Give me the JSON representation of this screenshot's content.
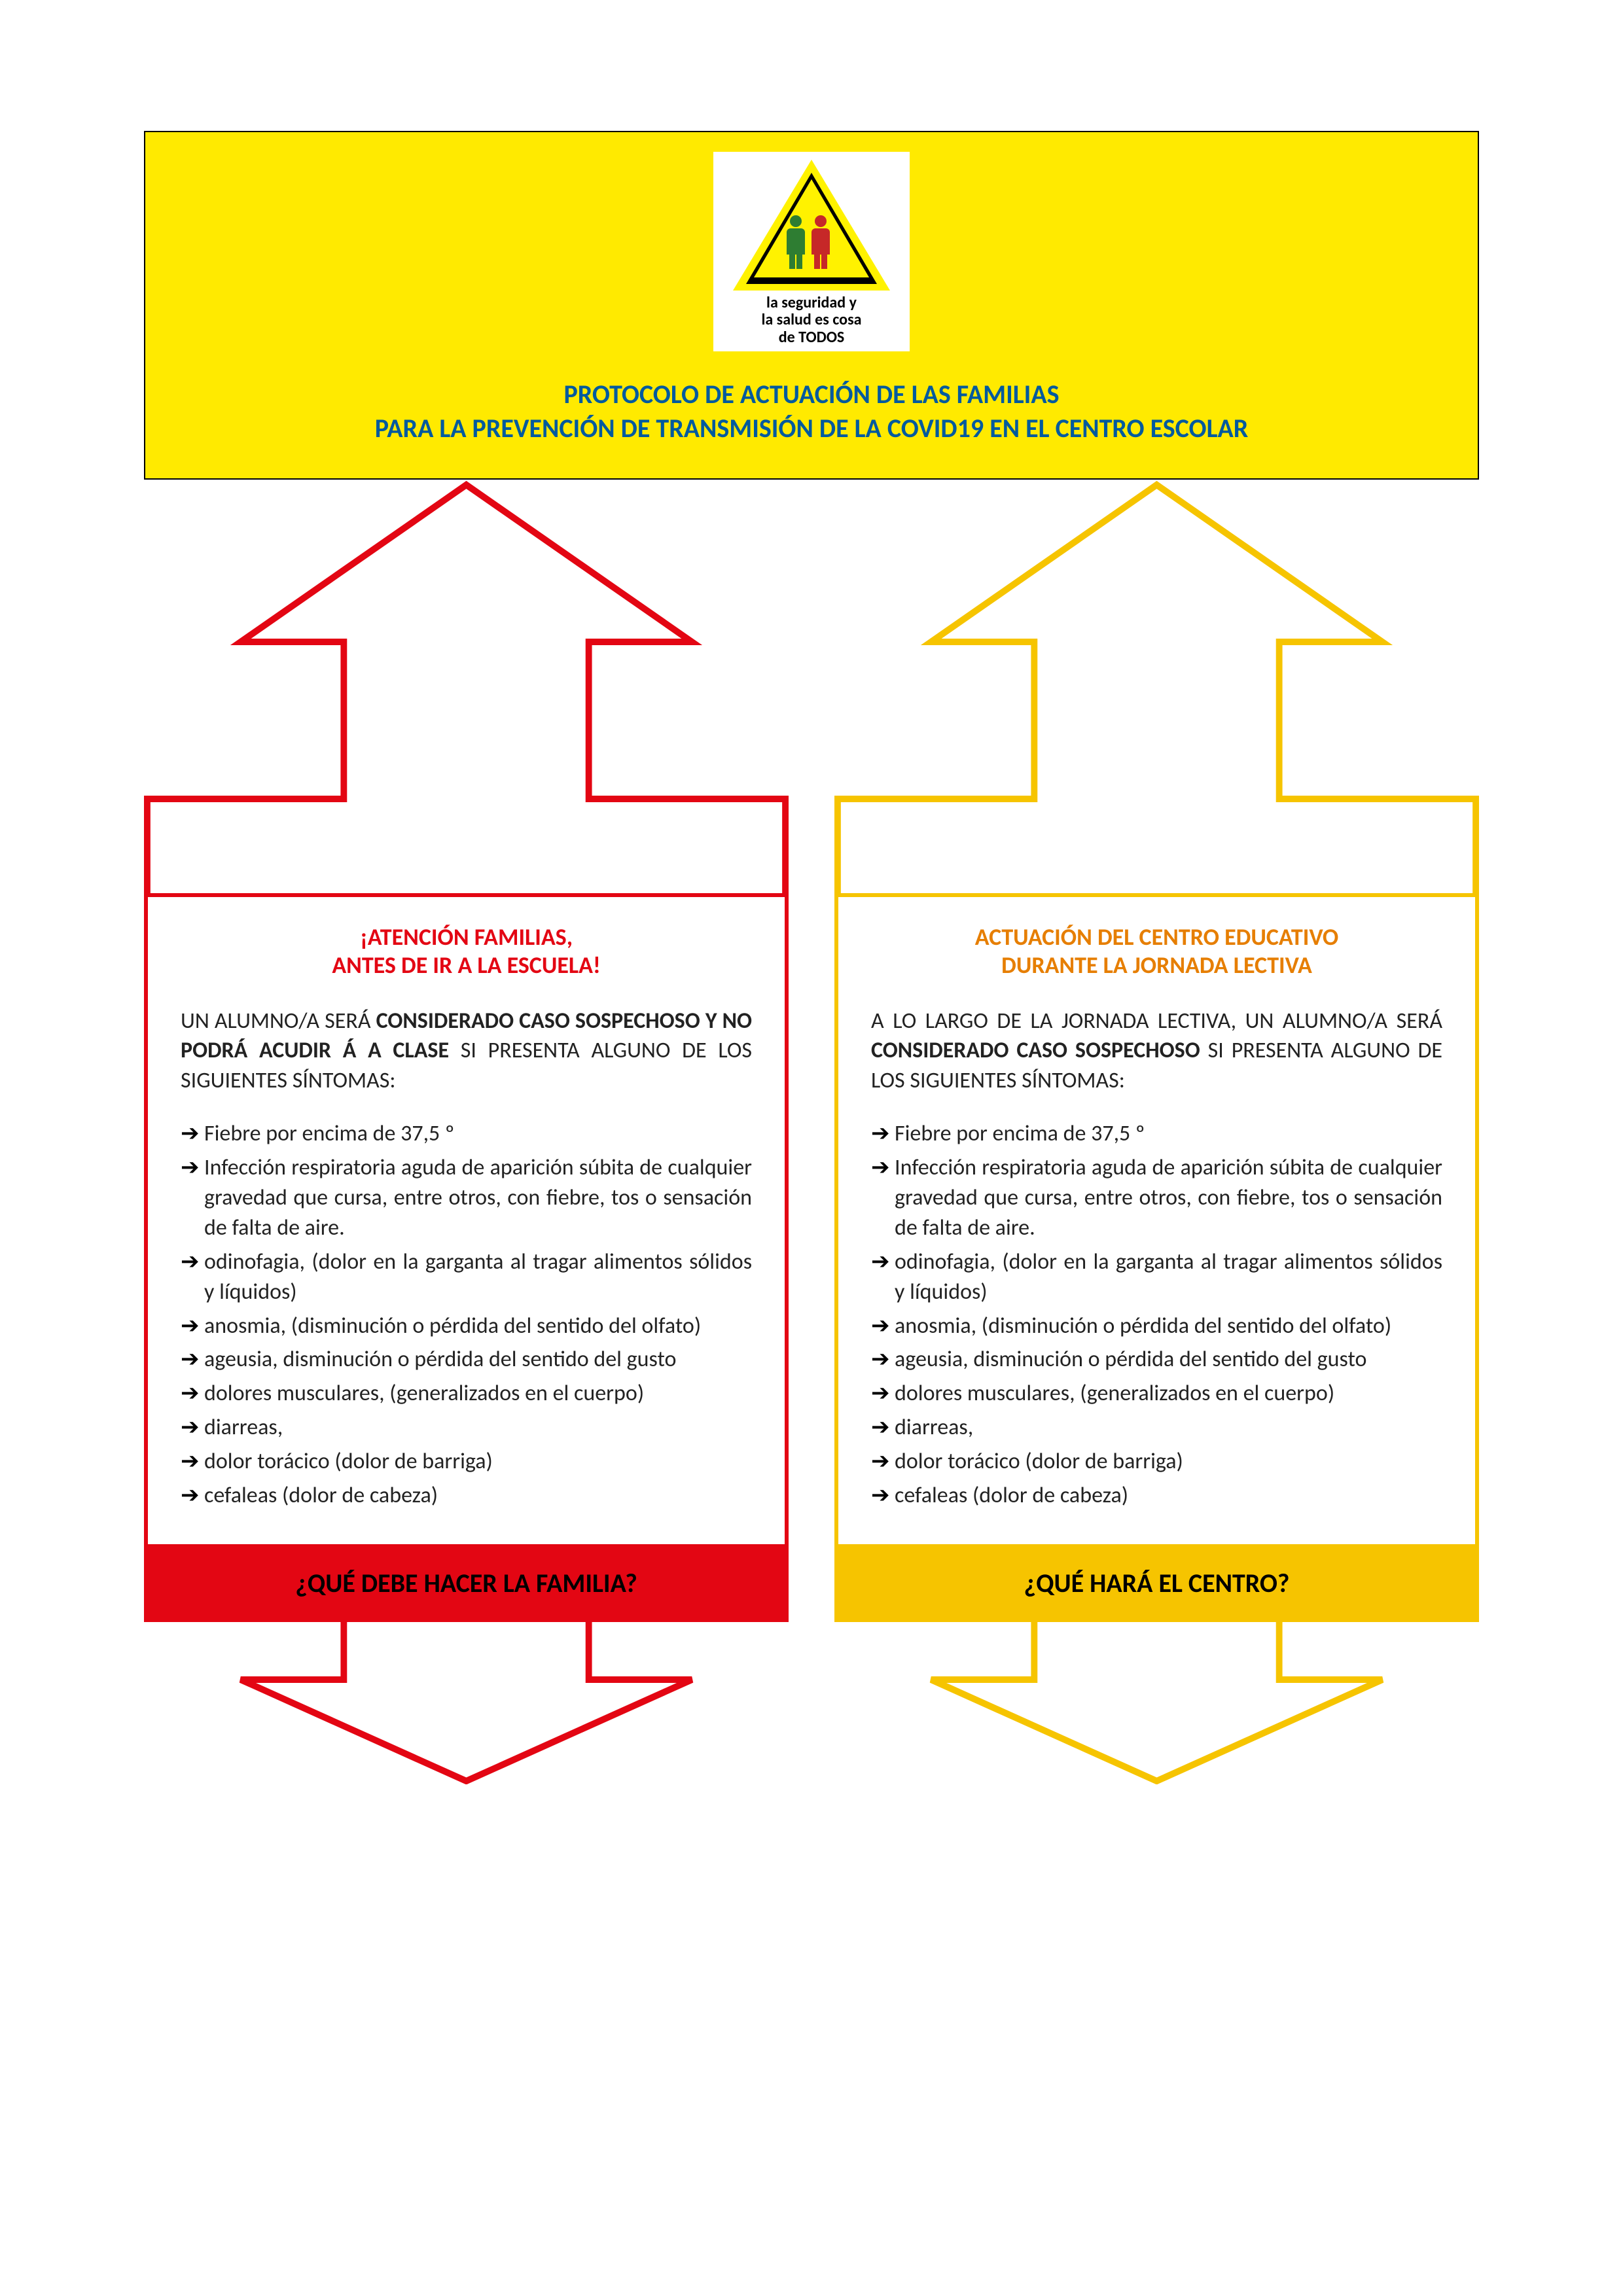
{
  "colors": {
    "header_bg": "#ffea00",
    "header_border": "#000000",
    "title_color": "#005a9e",
    "red": "#e30613",
    "yellow": "#f6c400",
    "orange": "#e67e00",
    "arrow_stroke_width": 10
  },
  "logo": {
    "line1": "la seguridad y",
    "line2": "la salud es cosa",
    "line3": "de TODOS"
  },
  "header": {
    "title_line1": "PROTOCOLO DE ACTUACIÓN DE LAS FAMILIAS",
    "title_line2": "PARA LA PREVENCIÓN DE TRANSMISIÓN DE LA COVID19  EN EL CENTRO ESCOLAR"
  },
  "left": {
    "heading_line1": "¡ATENCIÓN FAMILIAS,",
    "heading_line2": "ANTES DE IR A LA ESCUELA!",
    "intro_pre": "UN ALUMNO/A SERÁ ",
    "intro_bold": "CONSIDERADO CASO SOSPECHOSO Y NO PODRÁ ACUDIR Á A CLASE",
    "intro_post": " SI PRESENTA ALGUNO DE LOS SIGUIENTES SÍNTOMAS:",
    "symptoms": [
      "Fiebre por encima de 37,5 º",
      "Infección respiratoria aguda de aparición súbita de cualquier gravedad que cursa, entre otros, con fiebre, tos o sensación de falta de aire.",
      "odinofagia, (dolor en la garganta al tragar alimentos sólidos y líquidos)",
      "anosmia, (disminución o pérdida del sentido del olfato)",
      "ageusia, disminución o pérdida del sentido del gusto",
      "dolores musculares, (generalizados en el cuerpo)",
      "diarreas,",
      "dolor torácico (dolor de barriga)",
      "cefaleas (dolor de cabeza)"
    ],
    "footer": "¿QUÉ DEBE HACER LA FAMILIA?"
  },
  "right": {
    "heading_line1": "ACTUACIÓN DEL CENTRO EDUCATIVO",
    "heading_line2": "DURANTE LA JORNADA LECTIVA",
    "intro_pre": "A LO LARGO DE LA JORNADA LECTIVA, UN ALUMNO/A SERÁ ",
    "intro_bold": "CONSIDERADO CASO SOSPECHOSO",
    "intro_post": " SI PRESENTA ALGUNO DE LOS SIGUIENTES SÍNTOMAS:",
    "symptoms": [
      "Fiebre por encima de 37,5 º",
      "Infección respiratoria aguda de aparición súbita de cualquier gravedad que cursa, entre otros, con fiebre, tos o sensación de falta de aire.",
      "odinofagia, (dolor en la garganta al tragar alimentos sólidos y líquidos)",
      "anosmia, (disminución o pérdida del sentido del olfato)",
      "ageusia, disminución o pérdida del sentido del gusto",
      "dolores musculares, (generalizados en el cuerpo)",
      "diarreas,",
      "dolor torácico (dolor de barriga)",
      "cefaleas (dolor de cabeza)"
    ],
    "footer": "¿QUÉ HARÁ EL CENTRO?"
  }
}
